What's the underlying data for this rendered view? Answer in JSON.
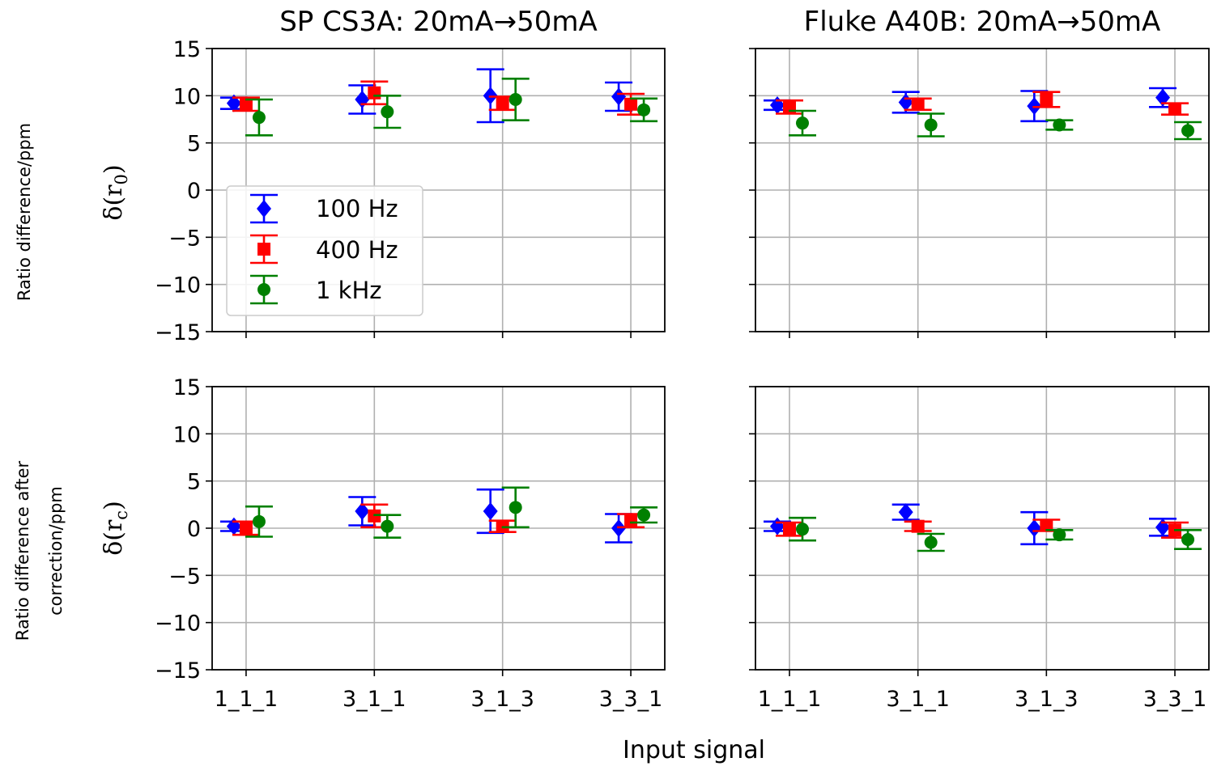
{
  "figure": {
    "xlabel": "Input signal",
    "row_labels": [
      {
        "line1": "Ratio difference/ppm",
        "line2": "",
        "symbol_base": "δ(r",
        "symbol_sub": "0",
        "symbol_close": ")"
      },
      {
        "line1": "Ratio difference after",
        "line2": "correction/ppm",
        "symbol_base": "δ(r",
        "symbol_sub": "c",
        "symbol_close": ")"
      }
    ]
  },
  "legend": {
    "entries": [
      {
        "label": "100 Hz",
        "marker": "diamond",
        "color": "#0000ff"
      },
      {
        "label": "400 Hz",
        "marker": "square",
        "color": "#ff0000"
      },
      {
        "label": "1 kHz",
        "marker": "circle",
        "color": "#008000"
      }
    ]
  },
  "chart_data": [
    {
      "type": "scatter",
      "title": "SP CS3A: 20mA→50mA",
      "categories": [
        "1_1_1",
        "3_1_1",
        "3_1_3",
        "3_3_1"
      ],
      "ylim": [
        -15,
        15
      ],
      "yticks": [
        15,
        10,
        5,
        0,
        -5,
        -10,
        -15
      ],
      "ytick_labels": [
        "15",
        "10",
        "5",
        "0",
        "−5",
        "−10",
        "−15"
      ],
      "grid": true,
      "legend_position": "center-left",
      "series": [
        {
          "name": "100 Hz",
          "values": [
            9.2,
            9.6,
            10.0,
            9.9
          ],
          "errors": [
            0.6,
            1.5,
            2.8,
            1.5
          ]
        },
        {
          "name": "400 Hz",
          "values": [
            9.1,
            10.3,
            9.2,
            9.1
          ],
          "errors": [
            0.7,
            1.2,
            0.7,
            1.1
          ]
        },
        {
          "name": "1 kHz",
          "values": [
            7.7,
            8.3,
            9.6,
            8.5
          ],
          "errors": [
            1.9,
            1.7,
            2.2,
            1.2
          ]
        }
      ]
    },
    {
      "type": "scatter",
      "title": "Fluke A40B: 20mA→50mA",
      "categories": [
        "1_1_1",
        "3_1_1",
        "3_1_3",
        "3_3_1"
      ],
      "ylim": [
        -15,
        15
      ],
      "yticks": [
        15,
        10,
        5,
        0,
        -5,
        -10,
        -15
      ],
      "ytick_labels": [
        "15",
        "10",
        "5",
        "0",
        "−5",
        "−10",
        "−15"
      ],
      "grid": true,
      "series": [
        {
          "name": "100 Hz",
          "values": [
            9.0,
            9.3,
            8.9,
            9.8
          ],
          "errors": [
            0.5,
            1.1,
            1.6,
            1.0
          ]
        },
        {
          "name": "400 Hz",
          "values": [
            8.8,
            9.1,
            9.6,
            8.6
          ],
          "errors": [
            0.7,
            0.6,
            0.8,
            0.6
          ]
        },
        {
          "name": "1 kHz",
          "values": [
            7.1,
            6.9,
            6.9,
            6.3
          ],
          "errors": [
            1.3,
            1.2,
            0.5,
            0.9
          ]
        }
      ]
    },
    {
      "type": "scatter",
      "title": "",
      "categories": [
        "1_1_1",
        "3_1_1",
        "3_1_3",
        "3_3_1"
      ],
      "xtick_labels": [
        "1_1_1",
        "3_1_1",
        "3_1_3",
        "3_3_1"
      ],
      "ylim": [
        -15,
        15
      ],
      "yticks": [
        15,
        10,
        5,
        0,
        -5,
        -10,
        -15
      ],
      "ytick_labels": [
        "15",
        "10",
        "5",
        "0",
        "−5",
        "−10",
        "−15"
      ],
      "grid": true,
      "series": [
        {
          "name": "100 Hz",
          "values": [
            0.2,
            1.8,
            1.8,
            0.0
          ],
          "errors": [
            0.5,
            1.5,
            2.3,
            1.5
          ]
        },
        {
          "name": "400 Hz",
          "values": [
            0.0,
            1.3,
            0.2,
            0.8
          ],
          "errors": [
            0.7,
            1.2,
            0.6,
            0.7
          ]
        },
        {
          "name": "1 kHz",
          "values": [
            0.7,
            0.2,
            2.2,
            1.4
          ],
          "errors": [
            1.6,
            1.2,
            2.1,
            0.8
          ]
        }
      ]
    },
    {
      "type": "scatter",
      "title": "",
      "categories": [
        "1_1_1",
        "3_1_1",
        "3_1_3",
        "3_3_1"
      ],
      "xtick_labels": [
        "1_1_1",
        "3_1_1",
        "3_1_3",
        "3_3_1"
      ],
      "ylim": [
        -15,
        15
      ],
      "yticks": [
        15,
        10,
        5,
        0,
        -5,
        -10,
        -15
      ],
      "ytick_labels": [
        "15",
        "10",
        "5",
        "0",
        "−5",
        "−10",
        "−15"
      ],
      "grid": true,
      "series": [
        {
          "name": "100 Hz",
          "values": [
            0.2,
            1.7,
            0.0,
            0.1
          ],
          "errors": [
            0.5,
            0.8,
            1.7,
            0.9
          ]
        },
        {
          "name": "400 Hz",
          "values": [
            -0.1,
            0.2,
            0.3,
            -0.2
          ],
          "errors": [
            0.7,
            0.5,
            0.6,
            0.8
          ]
        },
        {
          "name": "1 kHz",
          "values": [
            -0.1,
            -1.5,
            -0.7,
            -1.2
          ],
          "errors": [
            1.2,
            0.9,
            0.5,
            1.0
          ]
        }
      ]
    }
  ]
}
